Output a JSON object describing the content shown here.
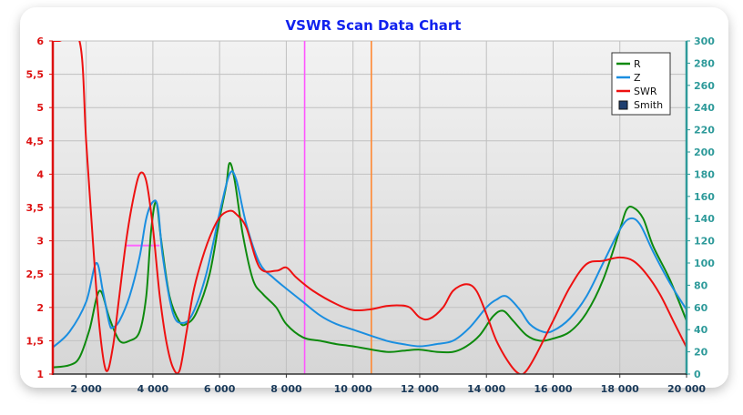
{
  "chart_data": {
    "type": "line",
    "title": "VSWR Scan Data Chart",
    "x_ticks": [
      "2 000",
      "4 000",
      "6 000",
      "8 000",
      "10 000",
      "12 000",
      "14 000",
      "16 000",
      "18 000",
      "20 000"
    ],
    "x_tick_values": [
      2000,
      4000,
      6000,
      8000,
      10000,
      12000,
      14000,
      16000,
      18000,
      20000
    ],
    "xlim": [
      1000,
      20000
    ],
    "left_axis": {
      "ylim": [
        1,
        6
      ],
      "ticks": [
        "1",
        "1,5",
        "2",
        "2,5",
        "3",
        "3,5",
        "4",
        "4,5",
        "5",
        "5,5",
        "6"
      ],
      "tick_values": [
        1,
        1.5,
        2,
        2.5,
        3,
        3.5,
        4,
        4.5,
        5,
        5.5,
        6
      ],
      "color": "#dd1111"
    },
    "right_axis": {
      "ylim": [
        0,
        300
      ],
      "ticks": [
        "0",
        "20",
        "40",
        "60",
        "80",
        "100",
        "120",
        "140",
        "160",
        "180",
        "200",
        "220",
        "240",
        "260",
        "280",
        "300"
      ],
      "tick_values": [
        0,
        20,
        40,
        60,
        80,
        100,
        120,
        140,
        160,
        180,
        200,
        220,
        240,
        260,
        280,
        300
      ],
      "color": "#2e9a9a"
    },
    "grid": true,
    "legend": {
      "placement": "top-right",
      "entries": [
        {
          "label": "R",
          "color": "#0e8a0e",
          "kind": "line"
        },
        {
          "label": "Z",
          "color": "#1a8ee0",
          "kind": "line"
        },
        {
          "label": "SWR",
          "color": "#ee1111",
          "kind": "line"
        },
        {
          "label": "Smith",
          "color": "#1f3f6f",
          "kind": "box"
        }
      ]
    },
    "markers": [
      {
        "x": 8550,
        "color": "#ff55ff"
      },
      {
        "x": 10550,
        "color": "#ff8833"
      }
    ],
    "bandwidth_segment": {
      "x_start": 3200,
      "x_end": 4200,
      "y": 2.93,
      "color": "#ff66ff"
    },
    "series": [
      {
        "name": "R",
        "axis": "right",
        "color": "#0e8a0e",
        "x": [
          1000,
          1500,
          1800,
          2100,
          2400,
          2700,
          3000,
          3300,
          3600,
          3800,
          3950,
          4100,
          4250,
          4500,
          4800,
          5000,
          5300,
          5700,
          6000,
          6200,
          6300,
          6450,
          6700,
          7000,
          7300,
          7700,
          8000,
          8500,
          9000,
          9500,
          10000,
          11000,
          11500,
          12000,
          12500,
          13000,
          13400,
          13800,
          14200,
          14500,
          14800,
          15200,
          15600,
          16000,
          16500,
          17000,
          17500,
          18000,
          18200,
          18400,
          18700,
          19000,
          19500,
          20000
        ],
        "y": [
          6,
          8,
          15,
          40,
          75,
          50,
          30,
          30,
          38,
          70,
          130,
          155,
          120,
          70,
          47,
          45,
          55,
          90,
          140,
          170,
          190,
          175,
          125,
          85,
          72,
          60,
          45,
          33,
          30,
          27,
          25,
          20,
          21,
          22,
          20,
          20,
          25,
          35,
          52,
          57,
          48,
          35,
          30,
          32,
          38,
          55,
          85,
          130,
          148,
          150,
          140,
          115,
          85,
          48
        ]
      },
      {
        "name": "Z",
        "axis": "right",
        "color": "#1a8ee0",
        "x": [
          1000,
          1500,
          2000,
          2300,
          2500,
          2700,
          2800,
          3000,
          3300,
          3600,
          3800,
          4000,
          4150,
          4300,
          4600,
          4900,
          5200,
          5600,
          6000,
          6300,
          6500,
          6800,
          7200,
          7600,
          8000,
          8500,
          9000,
          9500,
          10000,
          11000,
          11500,
          12000,
          12500,
          13000,
          13500,
          14000,
          14300,
          14600,
          15000,
          15300,
          15700,
          16000,
          16500,
          17000,
          17500,
          18000,
          18300,
          18600,
          19000,
          19500,
          20000
        ],
        "y": [
          24,
          38,
          65,
          100,
          75,
          45,
          42,
          48,
          70,
          105,
          140,
          155,
          150,
          105,
          55,
          46,
          55,
          90,
          145,
          180,
          175,
          135,
          100,
          87,
          77,
          65,
          53,
          45,
          40,
          30,
          27,
          25,
          27,
          30,
          42,
          60,
          67,
          70,
          58,
          45,
          38,
          39,
          50,
          70,
          100,
          130,
          140,
          135,
          110,
          82,
          58
        ]
      },
      {
        "name": "SWR",
        "axis": "left",
        "color": "#ee1111",
        "x": [
          1000,
          1200,
          1800,
          2000,
          2200,
          2400,
          2600,
          2800,
          3000,
          3200,
          3400,
          3600,
          3800,
          4000,
          4200,
          4400,
          4600,
          4800,
          5000,
          5200,
          5400,
          5700,
          6000,
          6300,
          6500,
          6800,
          7200,
          7700,
          8000,
          8300,
          8800,
          9500,
          10000,
          10500,
          11000,
          11400,
          11700,
          12000,
          12300,
          12700,
          13000,
          13400,
          13700,
          14000,
          14300,
          14700,
          15000,
          15200,
          15500,
          16000,
          16500,
          17000,
          17500,
          18000,
          18400,
          18800,
          19200,
          19600,
          20000
        ],
        "y": [
          6,
          6,
          6,
          4.5,
          3,
          1.7,
          1.05,
          1.4,
          2.2,
          3,
          3.6,
          4,
          3.9,
          3.2,
          2.2,
          1.5,
          1.1,
          1.05,
          1.6,
          2.2,
          2.6,
          3.05,
          3.35,
          3.45,
          3.4,
          3.2,
          2.6,
          2.55,
          2.6,
          2.45,
          2.25,
          2.05,
          1.96,
          1.97,
          2.02,
          2.03,
          2,
          1.85,
          1.83,
          2,
          2.25,
          2.35,
          2.25,
          1.9,
          1.5,
          1.15,
          1,
          1.05,
          1.3,
          1.8,
          2.3,
          2.65,
          2.7,
          2.75,
          2.7,
          2.5,
          2.2,
          1.8,
          1.4
        ]
      }
    ]
  }
}
